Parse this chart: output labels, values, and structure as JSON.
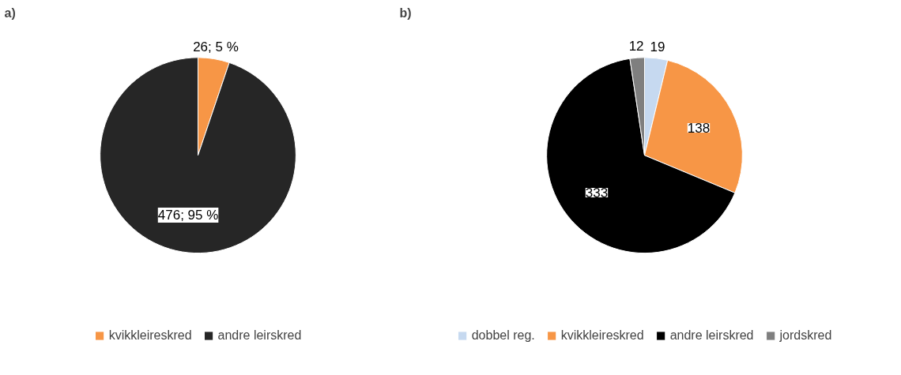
{
  "chart_data": [
    {
      "type": "pie",
      "title": "a)",
      "categories": [
        "kvikkleireskred",
        "andre leirskred"
      ],
      "values": [
        26,
        476
      ],
      "colors": [
        "#f79646",
        "#262626"
      ],
      "value_labels": [
        "26; 5 %",
        "476; 95 %"
      ],
      "legend": "bottom"
    },
    {
      "type": "pie",
      "title": "b)",
      "categories": [
        "dobbel reg.",
        "kvikkleireskred",
        "andre leirskred",
        "jordskred"
      ],
      "values": [
        19,
        138,
        333,
        12
      ],
      "colors": [
        "#c6d9f0",
        "#f79646",
        "#000000",
        "#7f7f7f"
      ],
      "data_labels": true,
      "legend": "bottom"
    }
  ]
}
